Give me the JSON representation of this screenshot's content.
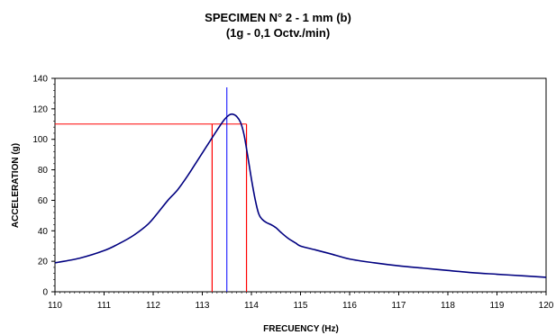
{
  "chart_data": {
    "type": "line",
    "title": "SPECIMEN N° 2 - 1 mm (b)",
    "subtitle": "(1g - 0,1 Octv./min)",
    "xlabel": "FRECUENCY (Hz)",
    "ylabel": "ACCELERATION (g)",
    "xlim": [
      110,
      120
    ],
    "ylim": [
      0,
      140
    ],
    "x_ticks": [
      110,
      111,
      112,
      113,
      114,
      115,
      116,
      117,
      118,
      119,
      120
    ],
    "y_ticks": [
      0,
      20,
      40,
      60,
      80,
      100,
      120,
      140
    ],
    "grid": false,
    "legend": "none",
    "series": [
      {
        "color": "#000080",
        "x": [
          110.0,
          110.5,
          111.0,
          111.3,
          111.6,
          111.9,
          112.1,
          112.3,
          112.5,
          112.7,
          112.9,
          113.1,
          113.3,
          113.45,
          113.55,
          113.62,
          113.7,
          113.78,
          113.85,
          113.92,
          114.0,
          114.08,
          114.15,
          114.22,
          114.3,
          114.4,
          114.5,
          114.6,
          114.75,
          114.9,
          115.0,
          115.3,
          115.6,
          116.0,
          116.5,
          117.0,
          117.5,
          118.0,
          118.5,
          119.0,
          119.5,
          120.0
        ],
        "y": [
          19,
          22,
          27,
          31.5,
          37,
          44.5,
          52,
          60,
          67,
          76,
          86,
          96,
          106,
          113,
          116,
          116.5,
          115,
          111,
          103,
          90,
          74,
          60,
          51,
          47.5,
          45.5,
          44,
          42,
          39,
          35,
          32,
          30,
          27.5,
          25,
          21.5,
          19,
          17,
          15.5,
          14,
          12.5,
          11.5,
          10.5,
          9.5
        ]
      }
    ],
    "reference_lines": {
      "color": "#ff0000",
      "horizontal_y": 110,
      "vertical_x": [
        113.2,
        113.9
      ],
      "peak_marker_x": 113.5,
      "peak_marker_color": "#0000ff"
    }
  }
}
